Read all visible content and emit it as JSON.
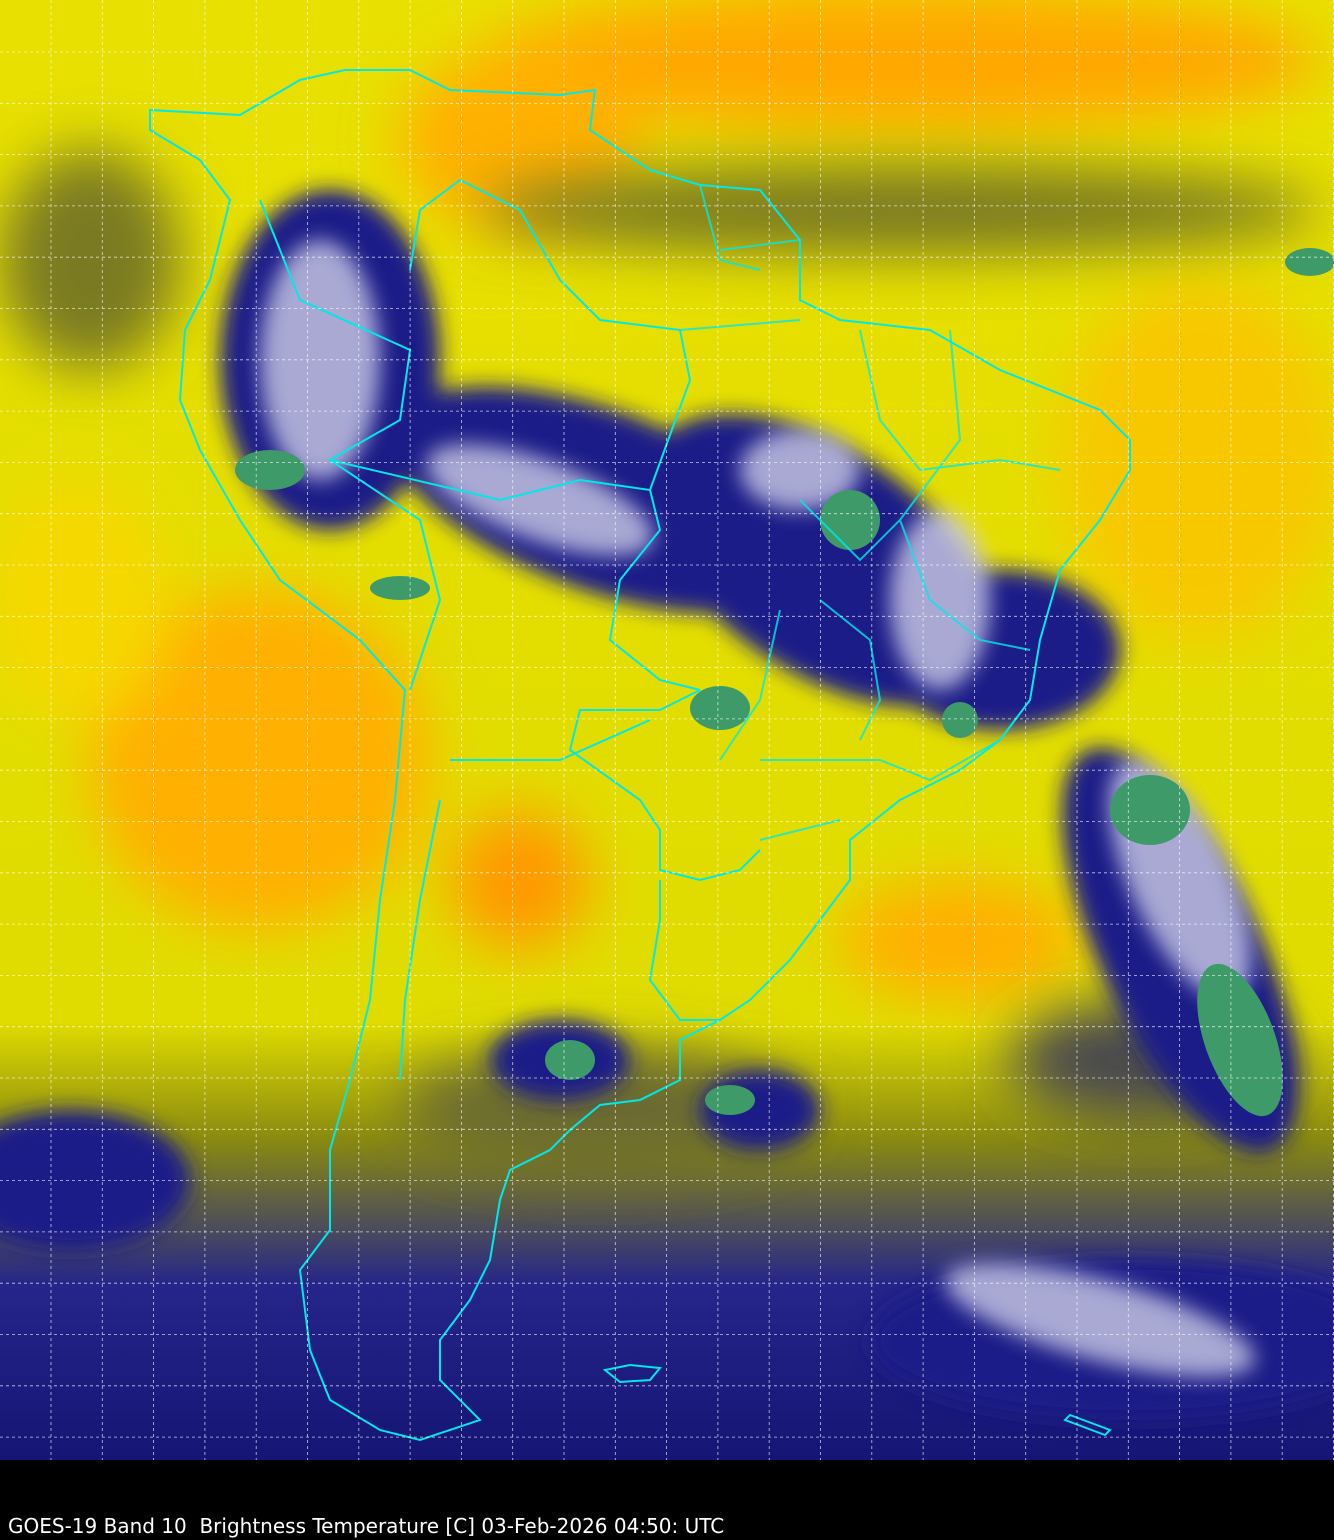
{
  "caption": "GOES-19 Band 10  Brightness Temperature [C] 03-Feb-2026 04:50: UTC",
  "colors": {
    "warm": "#ffb000",
    "mid": "#f5f000",
    "dry": "#8a8a10",
    "cold": "#1a1a80",
    "coldest": "#3a9a70",
    "borders": "#00e5e5",
    "grid": "#ffffff"
  }
}
